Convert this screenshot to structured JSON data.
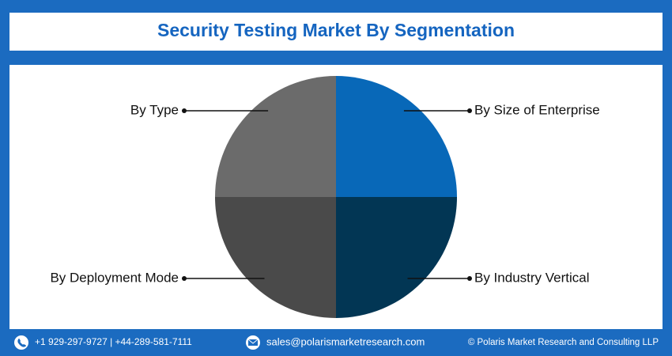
{
  "chart_data": {
    "type": "pie",
    "title": "Security Testing Market By Segmentation",
    "categories": [
      "By Size of Enterprise",
      "By Industry Vertical",
      "By Deployment Mode",
      "By Type"
    ],
    "values": [
      25,
      25,
      25,
      25
    ],
    "colors": [
      "#0868b8",
      "#023654",
      "#4a4a4a",
      "#6b6b6b"
    ]
  },
  "footer": {
    "phone": "+1 929-297-9727 | +44-289-581-7111",
    "email": "sales@polarismarketresearch.com",
    "copyright": "© Polaris Market Research and Consulting LLP"
  }
}
